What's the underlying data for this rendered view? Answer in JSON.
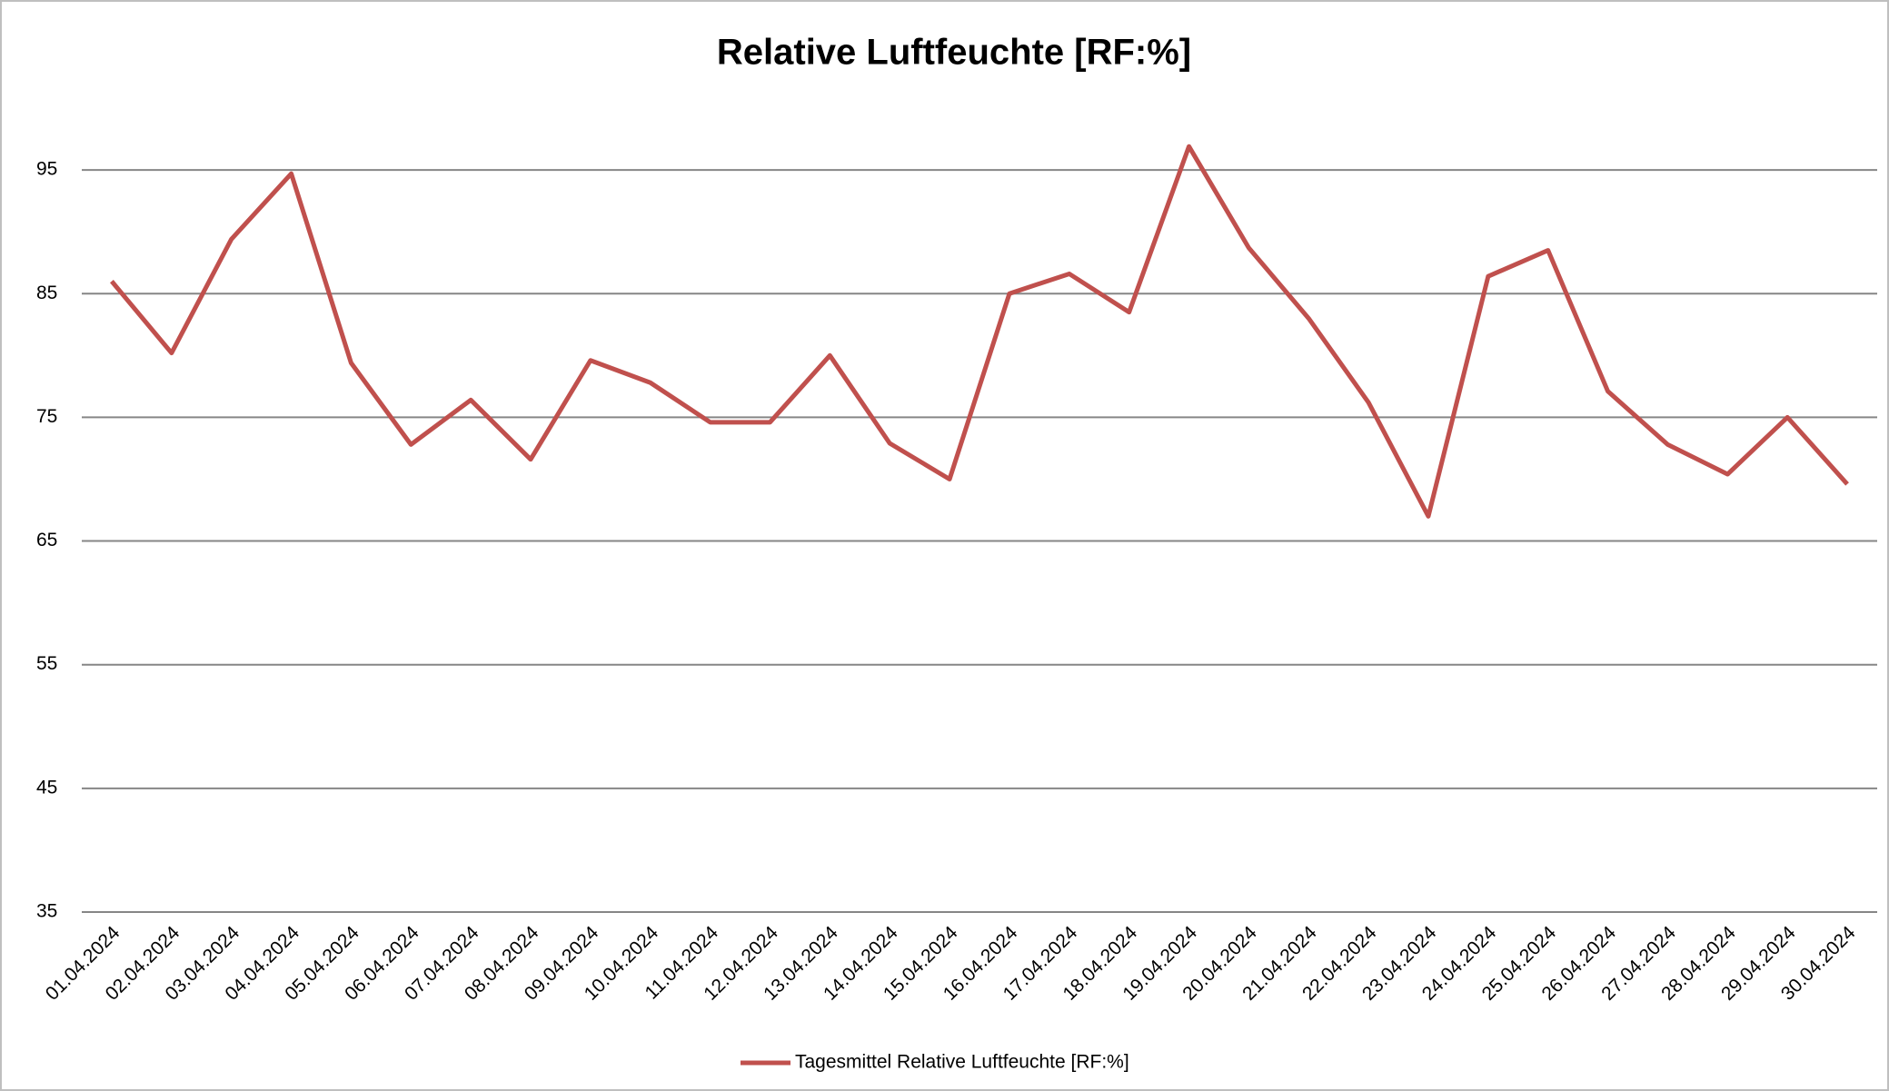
{
  "chart_data": {
    "type": "line",
    "title": "Relative Luftfeuchte [RF:%]",
    "categories": [
      "01.04.2024",
      "02.04.2024",
      "03.04.2024",
      "04.04.2024",
      "05.04.2024",
      "06.04.2024",
      "07.04.2024",
      "08.04.2024",
      "09.04.2024",
      "10.04.2024",
      "11.04.2024",
      "12.04.2024",
      "13.04.2024",
      "14.04.2024",
      "15.04.2024",
      "16.04.2024",
      "17.04.2024",
      "18.04.2024",
      "19.04.2024",
      "20.04.2024",
      "21.04.2024",
      "22.04.2024",
      "23.04.2024",
      "24.04.2024",
      "25.04.2024",
      "26.04.2024",
      "27.04.2024",
      "28.04.2024",
      "29.04.2024",
      "30.04.2024"
    ],
    "series": [
      {
        "name": "Tagesmittel Relative Luftfeuchte [RF:%]",
        "color": "#c0504d",
        "values": [
          86,
          80.2,
          89.4,
          94.7,
          79.4,
          72.8,
          76.4,
          71.6,
          79.6,
          77.8,
          74.6,
          74.6,
          80.0,
          72.9,
          70.0,
          85.0,
          86.6,
          83.5,
          96.9,
          88.7,
          83.0,
          76.2,
          67.0,
          86.4,
          88.5,
          77.1,
          72.8,
          70.4,
          75.0,
          69.6
        ]
      }
    ],
    "ylim": [
      35,
      100
    ],
    "yticks": [
      35,
      45,
      55,
      65,
      75,
      85,
      95
    ],
    "grid": true,
    "legend": "bottom"
  }
}
